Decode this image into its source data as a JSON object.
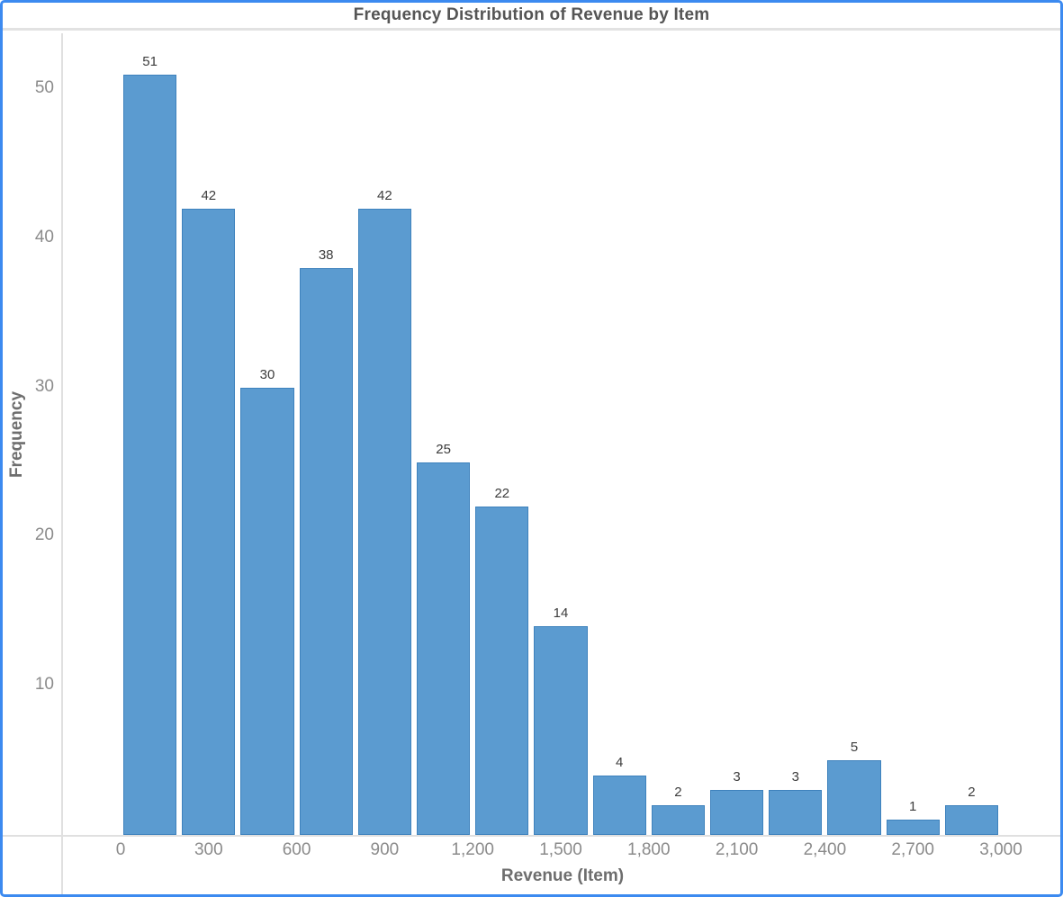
{
  "window": {
    "border_color": "#3c8af0",
    "divider_color": "#e2e2e2"
  },
  "chart_data": {
    "type": "bar",
    "subtype": "histogram",
    "title": "Frequency Distribution of Revenue by Item",
    "xlabel": "Revenue (Item)",
    "ylabel": "Frequency",
    "bin_width": 200,
    "bin_start": 0,
    "values": [
      51,
      42,
      30,
      38,
      42,
      25,
      22,
      14,
      4,
      2,
      3,
      3,
      5,
      1,
      2
    ],
    "bar_labels": [
      "51",
      "42",
      "30",
      "38",
      "42",
      "25",
      "22",
      "14",
      "4",
      "2",
      "3",
      "3",
      "5",
      "1",
      "2"
    ],
    "x_tick_values": [
      0,
      300,
      600,
      900,
      1200,
      1500,
      1800,
      2100,
      2400,
      2700,
      3000
    ],
    "x_tick_labels": [
      "0",
      "300",
      "600",
      "900",
      "1,200",
      "1,500",
      "1,800",
      "2,100",
      "2,400",
      "2,700",
      "3,000"
    ],
    "y_tick_values": [
      10,
      20,
      30,
      40,
      50
    ],
    "y_tick_labels": [
      "10",
      "20",
      "30",
      "40",
      "50"
    ],
    "xlim": [
      0,
      3000
    ],
    "ylim": [
      0,
      53.75
    ],
    "grid": false,
    "legend": false,
    "bar_fill": "#5b9bd0",
    "bar_stroke": "#3e82bd",
    "colors": {
      "title_text": "#555555",
      "axis_title_text": "#6e6e6e",
      "tick_text": "#8b8b8b",
      "bar_label_text": "#3c3c3c",
      "axis_line": "#e0e0e0"
    }
  }
}
